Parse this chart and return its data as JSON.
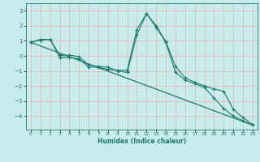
{
  "xlabel": "Humidex (Indice chaleur)",
  "bg_color": "#c8ecec",
  "grid_color": "#e8b8b8",
  "line_color": "#1a7a6e",
  "xlim": [
    -0.5,
    23.5
  ],
  "ylim": [
    -4.9,
    3.5
  ],
  "xticks": [
    0,
    1,
    2,
    3,
    4,
    5,
    6,
    7,
    8,
    9,
    10,
    11,
    12,
    13,
    14,
    15,
    16,
    17,
    18,
    19,
    20,
    21,
    22,
    23
  ],
  "yticks": [
    -4,
    -3,
    -2,
    -1,
    0,
    1,
    2,
    3
  ],
  "series": [
    {
      "x": [
        0,
        1,
        2,
        3,
        4,
        5,
        6,
        7,
        8,
        9,
        10,
        11,
        12,
        13,
        14,
        15,
        16,
        17,
        18,
        19,
        20,
        21,
        22,
        23
      ],
      "y": [
        0.9,
        1.1,
        1.1,
        -0.1,
        -0.1,
        -0.2,
        -0.75,
        -0.75,
        -0.9,
        -0.95,
        -0.95,
        1.75,
        2.8,
        1.9,
        0.9,
        -1.1,
        -1.6,
        -1.85,
        -2.1,
        -2.8,
        -3.5,
        -4.0,
        -4.3,
        -4.6
      ],
      "marker": true
    },
    {
      "x": [
        0,
        1,
        2,
        3,
        4,
        5,
        6,
        7,
        8,
        9,
        10,
        11,
        12,
        13,
        14,
        15,
        16,
        17,
        18,
        19,
        20,
        21,
        22,
        23
      ],
      "y": [
        0.9,
        1.05,
        1.1,
        0.05,
        0.05,
        -0.05,
        -0.6,
        -0.7,
        -0.75,
        -1.0,
        -1.1,
        1.4,
        2.8,
        2.0,
        0.95,
        -0.7,
        -1.45,
        -1.75,
        -2.0,
        -2.2,
        -2.35,
        -3.55,
        -4.1,
        -4.55
      ],
      "marker": true
    },
    {
      "x": [
        0,
        23
      ],
      "y": [
        0.9,
        -4.6
      ],
      "marker": false
    }
  ]
}
